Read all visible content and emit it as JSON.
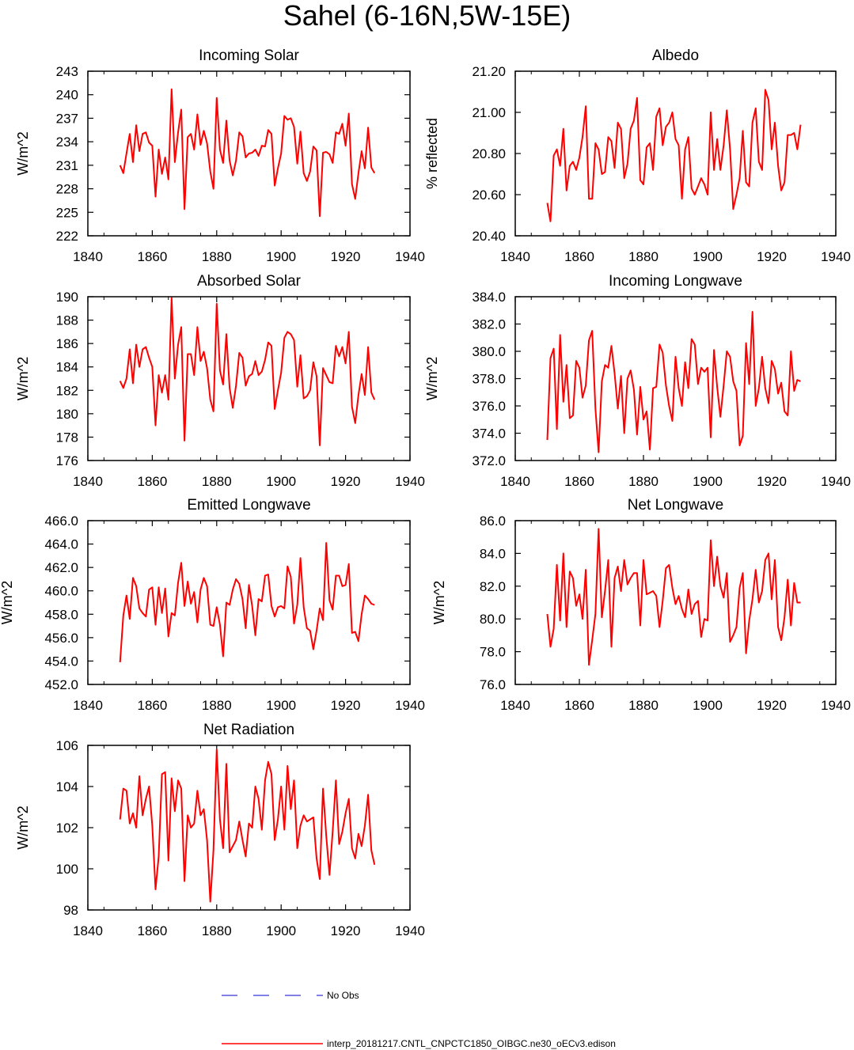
{
  "figure": {
    "title": "Sahel (6-16N,5W-15E)"
  },
  "legend": [
    {
      "name": "No Obs",
      "color": "#0000cc",
      "style": "dashed"
    },
    {
      "name": "interp_20181217.CNTL_CNPCTC1850_OIBGC.ne30_oECv3.edison",
      "color": "#ff0000",
      "style": "solid"
    }
  ],
  "series_color": "#ff0000",
  "chart_data": [
    {
      "type": "line",
      "title": "Incoming Solar",
      "xlabel": "",
      "ylabel": "W/m^2",
      "xlim": [
        1840,
        1940
      ],
      "xticks": [
        1840,
        1860,
        1880,
        1900,
        1920,
        1940
      ],
      "ylim": [
        222,
        243
      ],
      "yticks": [
        "222",
        "225",
        "228",
        "231",
        "234",
        "237",
        "240",
        "243"
      ],
      "x_start": 1850,
      "values": [
        231.0,
        230.0,
        232.5,
        235.0,
        231.4,
        236.1,
        232.8,
        235.0,
        235.2,
        233.9,
        233.5,
        227.0,
        233.0,
        229.9,
        232.0,
        229.2,
        240.7,
        231.4,
        235.2,
        238.1,
        225.4,
        234.6,
        235.0,
        233.0,
        237.5,
        233.6,
        235.4,
        233.8,
        230.2,
        228.0,
        239.6,
        233.0,
        231.3,
        236.7,
        231.6,
        229.7,
        231.6,
        235.2,
        234.7,
        232.0,
        232.5,
        232.6,
        233.0,
        232.2,
        233.5,
        233.4,
        235.5,
        235.0,
        228.4,
        230.6,
        232.5,
        237.3,
        236.8,
        237.0,
        235.9,
        231.2,
        235.3,
        230.0,
        229.0,
        230.2,
        233.4,
        232.9,
        224.5,
        232.6,
        232.7,
        232.4,
        231.3,
        235.2,
        235.0,
        236.3,
        233.5,
        237.6,
        228.6,
        226.7,
        230.0,
        232.8,
        230.6,
        235.8,
        230.7,
        230.0
      ]
    },
    {
      "type": "line",
      "title": "Albedo",
      "xlabel": "",
      "ylabel": "% reflected",
      "xlim": [
        1840,
        1940
      ],
      "xticks": [
        1840,
        1860,
        1880,
        1900,
        1920,
        1940
      ],
      "ylim": [
        20.4,
        21.2
      ],
      "yticks": [
        "20.40",
        "20.60",
        "20.80",
        "21.00",
        "21.20"
      ],
      "x_start": 1850,
      "values": [
        20.56,
        20.47,
        20.79,
        20.82,
        20.74,
        20.92,
        20.62,
        20.74,
        20.76,
        20.72,
        20.78,
        20.88,
        21.03,
        20.58,
        20.58,
        20.85,
        20.82,
        20.7,
        20.71,
        20.88,
        20.86,
        20.73,
        20.95,
        20.92,
        20.68,
        20.75,
        20.92,
        20.96,
        21.07,
        20.67,
        20.65,
        20.83,
        20.85,
        20.72,
        20.98,
        21.02,
        20.84,
        20.93,
        20.95,
        21.0,
        20.87,
        20.84,
        20.58,
        20.82,
        20.88,
        20.63,
        20.6,
        20.64,
        20.68,
        20.65,
        20.6,
        21.0,
        20.72,
        20.87,
        20.72,
        20.84,
        21.01,
        20.82,
        20.53,
        20.6,
        20.68,
        20.91,
        20.66,
        20.64,
        20.95,
        21.02,
        20.76,
        20.72,
        21.11,
        21.06,
        20.82,
        20.95,
        20.74,
        20.62,
        20.66,
        20.89,
        20.89,
        20.9,
        20.82,
        20.94
      ]
    },
    {
      "type": "line",
      "title": "Absorbed Solar",
      "xlabel": "",
      "ylabel": "W/m^2",
      "xlim": [
        1840,
        1940
      ],
      "xticks": [
        1840,
        1860,
        1880,
        1900,
        1920,
        1940
      ],
      "ylim": [
        176,
        190
      ],
      "yticks": [
        "176",
        "178",
        "180",
        "182",
        "184",
        "186",
        "188",
        "190"
      ],
      "x_start": 1850,
      "values": [
        182.8,
        182.2,
        183.0,
        185.5,
        182.6,
        185.9,
        184.0,
        185.5,
        185.7,
        184.8,
        184.0,
        179.0,
        183.3,
        181.8,
        183.3,
        181.2,
        189.9,
        183.0,
        185.9,
        187.4,
        177.7,
        185.1,
        185.1,
        183.3,
        187.4,
        184.5,
        185.3,
        183.9,
        181.2,
        180.2,
        189.4,
        183.7,
        182.5,
        186.8,
        182.2,
        180.5,
        182.4,
        185.2,
        184.8,
        182.4,
        183.2,
        183.4,
        184.5,
        183.3,
        183.6,
        184.6,
        186.1,
        185.8,
        180.4,
        182.0,
        183.5,
        186.5,
        187.0,
        186.8,
        186.3,
        182.3,
        185.0,
        181.3,
        181.5,
        182.0,
        184.4,
        183.2,
        177.3,
        183.9,
        183.3,
        182.7,
        182.6,
        185.8,
        184.9,
        185.7,
        184.3,
        187.0,
        180.6,
        179.2,
        181.6,
        183.4,
        181.6,
        185.7,
        181.8,
        181.2
      ]
    },
    {
      "type": "line",
      "title": "Incoming Longwave",
      "xlabel": "",
      "ylabel": "W/m^2",
      "xlim": [
        1840,
        1940
      ],
      "xticks": [
        1840,
        1860,
        1880,
        1900,
        1920,
        1940
      ],
      "ylim": [
        372.0,
        384.0
      ],
      "yticks": [
        "372.0",
        "374.0",
        "376.0",
        "378.0",
        "380.0",
        "382.0",
        "384.0"
      ],
      "x_start": 1850,
      "values": [
        373.5,
        379.5,
        380.2,
        374.3,
        381.2,
        376.3,
        379.0,
        375.1,
        375.3,
        379.3,
        378.8,
        376.6,
        377.5,
        380.8,
        381.5,
        375.8,
        372.6,
        377.8,
        379.0,
        378.8,
        380.4,
        378.4,
        375.8,
        378.2,
        374.0,
        378.0,
        378.6,
        377.2,
        373.9,
        377.4,
        375.0,
        375.6,
        372.8,
        377.3,
        377.4,
        380.5,
        379.9,
        377.5,
        376.0,
        374.9,
        379.6,
        377.3,
        376.0,
        379.2,
        377.3,
        380.9,
        380.5,
        377.6,
        378.8,
        378.5,
        378.8,
        373.7,
        380.1,
        377.4,
        375.2,
        377.5,
        380.0,
        379.6,
        377.8,
        377.1,
        373.1,
        373.8,
        380.6,
        377.6,
        382.9,
        376.0,
        377.3,
        379.6,
        377.3,
        376.2,
        379.3,
        378.7,
        376.9,
        377.7,
        375.6,
        375.3,
        380.0,
        377.1,
        377.9,
        377.8
      ]
    },
    {
      "type": "line",
      "title": "Emitted Longwave",
      "xlabel": "",
      "ylabel": "W/m^2",
      "xlim": [
        1840,
        1940
      ],
      "xticks": [
        1840,
        1860,
        1880,
        1900,
        1920,
        1940
      ],
      "ylim": [
        452.0,
        466.0
      ],
      "yticks": [
        "452.0",
        "454.0",
        "456.0",
        "458.0",
        "460.0",
        "462.0",
        "464.0",
        "466.0"
      ],
      "x_start": 1850,
      "values": [
        453.9,
        457.9,
        459.6,
        457.6,
        461.1,
        460.4,
        458.5,
        458.1,
        457.8,
        460.1,
        460.3,
        457.1,
        460.3,
        458.1,
        460.2,
        456.1,
        458.1,
        457.9,
        460.7,
        462.4,
        458.7,
        460.8,
        458.9,
        459.9,
        457.3,
        460.1,
        461.1,
        460.4,
        457.1,
        457.0,
        458.6,
        457.1,
        454.4,
        459.0,
        458.8,
        460.1,
        461.0,
        460.6,
        459.3,
        456.8,
        460.5,
        458.7,
        456.2,
        459.3,
        459.1,
        461.3,
        461.4,
        458.7,
        457.8,
        458.6,
        458.7,
        458.5,
        462.1,
        461.2,
        457.2,
        458.8,
        462.8,
        458.6,
        456.8,
        456.6,
        455.0,
        456.6,
        458.5,
        457.5,
        464.1,
        459.2,
        458.4,
        461.3,
        461.3,
        460.4,
        460.5,
        462.3,
        456.4,
        456.5,
        455.7,
        458.0,
        459.6,
        459.3,
        458.9,
        458.8
      ]
    },
    {
      "type": "line",
      "title": "Net Longwave",
      "xlabel": "",
      "ylabel": "W/m^2",
      "xlim": [
        1840,
        1940
      ],
      "xticks": [
        1840,
        1860,
        1880,
        1900,
        1920,
        1940
      ],
      "ylim": [
        76.0,
        86.0
      ],
      "yticks": [
        "76.0",
        "78.0",
        "80.0",
        "82.0",
        "84.0",
        "86.0"
      ],
      "x_start": 1850,
      "values": [
        80.3,
        78.3,
        79.4,
        83.3,
        79.9,
        84.0,
        79.5,
        82.9,
        82.5,
        80.8,
        81.5,
        80.0,
        83.0,
        77.2,
        78.7,
        80.3,
        85.5,
        80.1,
        81.7,
        83.6,
        78.3,
        82.5,
        83.2,
        81.7,
        83.6,
        82.1,
        82.5,
        82.8,
        82.8,
        79.6,
        83.6,
        81.5,
        81.6,
        81.7,
        81.4,
        79.5,
        81.1,
        83.1,
        83.3,
        81.9,
        80.9,
        81.4,
        80.6,
        80.1,
        81.8,
        80.3,
        80.9,
        81.1,
        78.9,
        80.0,
        79.9,
        84.8,
        82.0,
        83.8,
        82.0,
        81.3,
        82.8,
        78.6,
        79.0,
        79.5,
        81.9,
        82.8,
        77.9,
        79.9,
        81.2,
        83.0,
        81.0,
        81.7,
        83.6,
        84.0,
        81.2,
        83.6,
        79.5,
        78.7,
        80.1,
        82.4,
        79.6,
        82.2,
        81.0,
        81.0
      ]
    },
    {
      "type": "line",
      "title": "Net Radiation",
      "xlabel": "",
      "ylabel": "W/m^2",
      "xlim": [
        1840,
        1940
      ],
      "xticks": [
        1840,
        1860,
        1880,
        1900,
        1920,
        1940
      ],
      "ylim": [
        98,
        106
      ],
      "yticks": [
        "98",
        "100",
        "102",
        "104",
        "106"
      ],
      "x_start": 1850,
      "values": [
        102.4,
        103.9,
        103.8,
        102.2,
        102.7,
        102.0,
        104.5,
        102.6,
        103.4,
        104.0,
        102.1,
        99.0,
        100.6,
        104.6,
        104.7,
        100.4,
        104.4,
        102.8,
        104.3,
        103.9,
        99.4,
        102.6,
        102.0,
        102.2,
        103.8,
        102.6,
        102.9,
        101.4,
        98.4,
        100.9,
        105.8,
        102.4,
        101.0,
        105.1,
        100.8,
        101.1,
        101.4,
        102.3,
        101.4,
        100.6,
        102.2,
        102.0,
        104.0,
        103.4,
        101.9,
        104.3,
        105.2,
        104.6,
        101.4,
        102.4,
        104.0,
        101.9,
        105.0,
        102.9,
        104.3,
        101.0,
        102.1,
        102.6,
        102.3,
        102.4,
        102.5,
        100.5,
        99.5,
        103.9,
        101.6,
        99.7,
        101.8,
        104.3,
        101.2,
        101.8,
        102.7,
        103.4,
        101.0,
        100.5,
        101.7,
        101.1,
        102.1,
        103.6,
        100.9,
        100.2
      ]
    }
  ]
}
